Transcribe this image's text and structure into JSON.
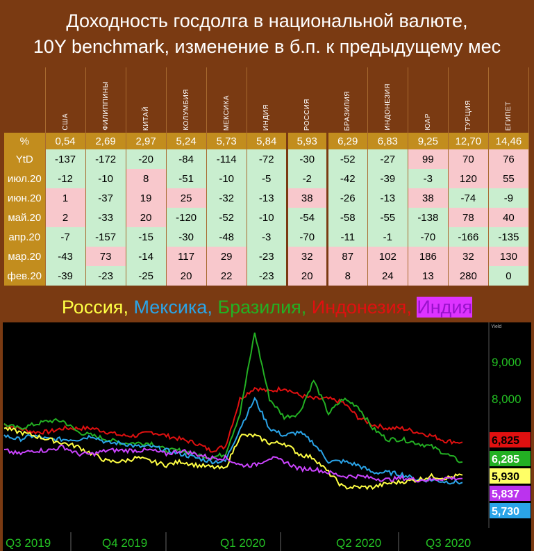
{
  "title_line1": "Доходность госдолга в национальной валюте,",
  "title_line2": "10Y benchmark, изменение в б.п. к предыдущему мес",
  "table": {
    "countries": [
      "США",
      "ФИЛИППИНЫ",
      "КИТАЙ",
      "КОЛУМБИЯ",
      "МЕКСИКА",
      "ИНДИЯ",
      "РОССИЯ",
      "БРАЗИЛИЯ",
      "ИНДОНЕЗИЯ",
      "ЮАР",
      "ТУРЦИЯ",
      "ЕГИПЕТ"
    ],
    "pct_label": "%",
    "yields": [
      "0,54",
      "2,69",
      "2,97",
      "5,24",
      "5,73",
      "5,84",
      "5,93",
      "6,29",
      "6,83",
      "9,25",
      "12,70",
      "14,46"
    ],
    "rows": [
      {
        "label": "YtD",
        "values": [
          -137,
          -172,
          -20,
          -84,
          -114,
          -72,
          -30,
          -52,
          -27,
          99,
          70,
          76
        ]
      },
      {
        "label": "июл.20",
        "values": [
          -12,
          -10,
          8,
          -51,
          -10,
          -5,
          -2,
          -42,
          -39,
          -3,
          120,
          55
        ]
      },
      {
        "label": "июн.20",
        "values": [
          1,
          -37,
          19,
          25,
          -32,
          -13,
          38,
          -26,
          -13,
          38,
          -74,
          -9
        ]
      },
      {
        "label": "май.20",
        "values": [
          2,
          -33,
          20,
          -120,
          -52,
          -10,
          -54,
          -58,
          -55,
          -138,
          78,
          40
        ]
      },
      {
        "label": "апр.20",
        "values": [
          -7,
          -157,
          -15,
          -30,
          -48,
          -3,
          -70,
          -11,
          -1,
          -70,
          -166,
          -135
        ]
      },
      {
        "label": "мар.20",
        "values": [
          -43,
          73,
          -14,
          117,
          29,
          -23,
          32,
          87,
          102,
          186,
          32,
          130
        ]
      },
      {
        "label": "фев.20",
        "values": [
          -39,
          -23,
          -25,
          20,
          22,
          -23,
          20,
          8,
          24,
          13,
          280,
          0
        ]
      }
    ]
  },
  "legend": [
    {
      "text": "Россия",
      "sep": ", ",
      "color": "#ffff44"
    },
    {
      "text": "Мексика",
      "sep": ", ",
      "color": "#2aa4e8"
    },
    {
      "text": "Бразилия",
      "sep": ", ",
      "color": "#23b023"
    },
    {
      "text": "Индонезия",
      "sep": ", ",
      "color": "#e01010"
    },
    {
      "text": "Индия",
      "sep": "",
      "color": "#cc44ff",
      "bg": "#cc22ee"
    }
  ],
  "chart_data": {
    "type": "line",
    "ylabel": "Yield",
    "y_ticks": [
      {
        "label": "9,000",
        "value": 9.0
      },
      {
        "label": "8,000",
        "value": 8.0
      }
    ],
    "x_labels": [
      "Q3 2019",
      "Q4 2019",
      "Q1 2020",
      "Q2 2020",
      "Q3 2020"
    ],
    "series": [
      {
        "name": "Индонезия",
        "color": "#e01010",
        "last_label": "6,825",
        "values": [
          7.3,
          7.2,
          7.1,
          7.1,
          7.2,
          7.2,
          7.2,
          7.1,
          7.0,
          7.0,
          7.1,
          7.0,
          6.9,
          6.8,
          6.6,
          6.7,
          8.0,
          8.3,
          8.2,
          8.3,
          8.1,
          8.0,
          8.0,
          7.9,
          7.5,
          7.3,
          7.2,
          7.2,
          7.1,
          7.0,
          6.85,
          6.825
        ]
      },
      {
        "name": "Бразилия",
        "color": "#23b023",
        "last_label": "6,285",
        "values": [
          7.3,
          7.2,
          7.3,
          7.4,
          7.4,
          7.1,
          7.0,
          6.9,
          6.8,
          6.8,
          6.8,
          6.6,
          6.6,
          6.5,
          6.4,
          6.5,
          7.6,
          9.8,
          8.0,
          7.5,
          7.6,
          8.5,
          7.6,
          8.0,
          7.8,
          7.2,
          6.9,
          6.9,
          6.8,
          6.7,
          6.5,
          6.285
        ]
      },
      {
        "name": "Мексика",
        "color": "#2aa4e8",
        "last_label": "5,730",
        "values": [
          7.0,
          6.9,
          7.0,
          6.9,
          6.9,
          6.9,
          7.0,
          6.8,
          6.8,
          6.7,
          6.7,
          6.6,
          6.5,
          6.4,
          6.3,
          6.3,
          7.2,
          8.0,
          7.2,
          7.0,
          7.1,
          6.8,
          6.3,
          6.3,
          6.2,
          6.0,
          6.0,
          5.95,
          5.8,
          5.8,
          5.75,
          5.73
        ]
      },
      {
        "name": "Россия",
        "color": "#ffff44",
        "last_label": "5,930",
        "values": [
          7.2,
          7.1,
          7.0,
          6.9,
          6.8,
          6.7,
          6.5,
          6.3,
          6.3,
          6.4,
          6.3,
          6.2,
          6.3,
          6.2,
          6.15,
          6.1,
          7.0,
          7.0,
          6.8,
          6.8,
          6.5,
          6.4,
          6.0,
          5.6,
          5.6,
          5.6,
          5.7,
          5.75,
          5.8,
          5.9,
          5.85,
          5.93
        ]
      },
      {
        "name": "Индия",
        "color": "#cc44ff",
        "last_label": "5,837",
        "values": [
          6.6,
          6.5,
          6.6,
          6.6,
          6.7,
          6.5,
          6.5,
          6.6,
          6.6,
          6.6,
          6.6,
          6.5,
          6.6,
          6.5,
          6.4,
          6.4,
          6.2,
          6.2,
          6.4,
          6.3,
          6.1,
          6.1,
          6.0,
          5.9,
          5.9,
          5.85,
          5.8,
          5.85,
          5.8,
          5.8,
          5.85,
          5.837
        ]
      }
    ]
  }
}
